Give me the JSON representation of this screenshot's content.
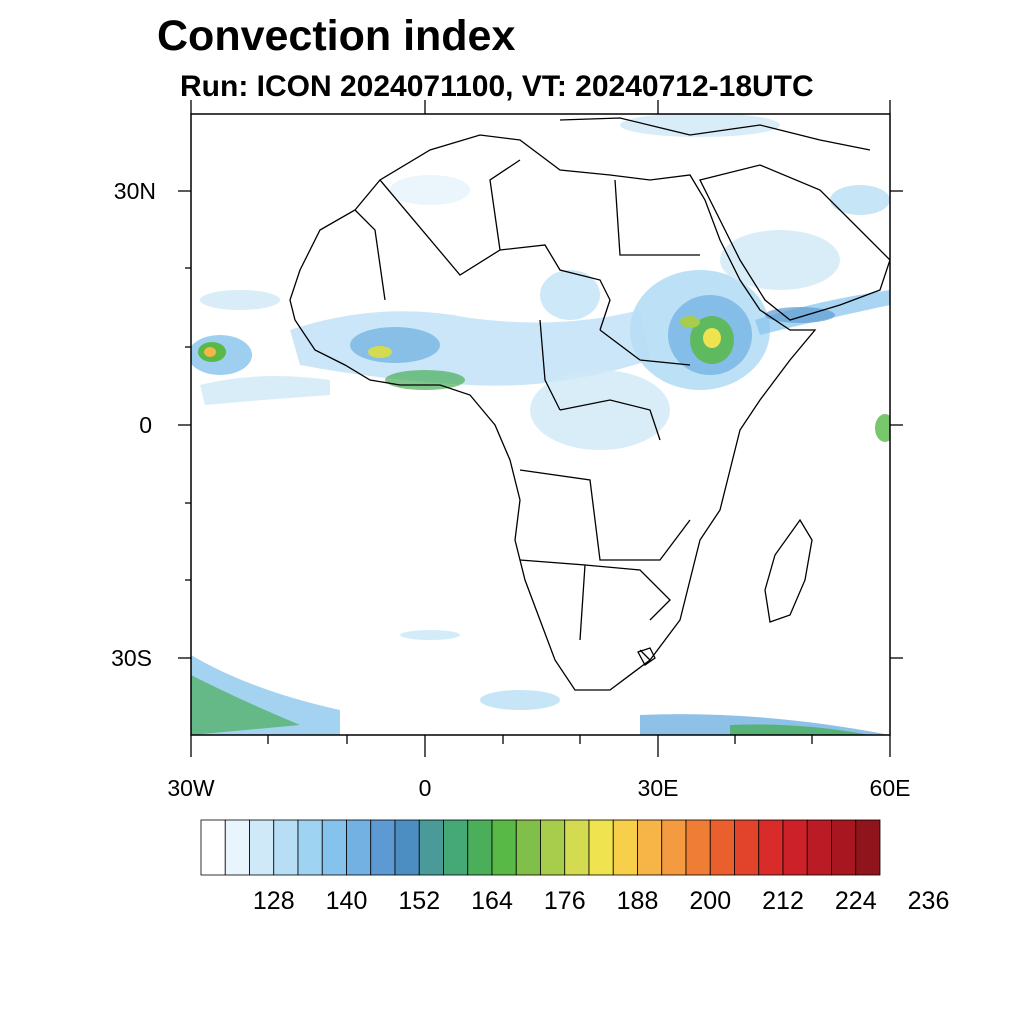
{
  "title": "Convection index",
  "subtitle": "Run: ICON 2024071100,  VT: 20240712-18UTC",
  "axes": {
    "lat_labels": [
      "30N",
      "0",
      "30S"
    ],
    "lon_labels": [
      "30W",
      "0",
      "30E",
      "60E"
    ]
  },
  "colorbar": {
    "labels": [
      "128",
      "140",
      "152",
      "164",
      "176",
      "188",
      "200",
      "212",
      "224",
      "236"
    ],
    "colors": [
      "#ffffff",
      "#e8f5fc",
      "#cfe9f8",
      "#b8def5",
      "#9fd3f2",
      "#86c3ec",
      "#72b1e2",
      "#5d9ad3",
      "#4d8ec2",
      "#4a9a9a",
      "#44a877",
      "#4aae5a",
      "#58b947",
      "#80c04a",
      "#a8cc4c",
      "#d3dc50",
      "#f0e350",
      "#f8cf4a",
      "#f7b547",
      "#f49a40",
      "#ef7d36",
      "#e9602e",
      "#e2442b",
      "#d92c2a",
      "#cc2129",
      "#bb1b24",
      "#a8171f",
      "#8f141b"
    ]
  },
  "map": {
    "region": "Africa",
    "extent_lon": [
      -30,
      60
    ],
    "extent_lat": [
      -40,
      40
    ]
  }
}
